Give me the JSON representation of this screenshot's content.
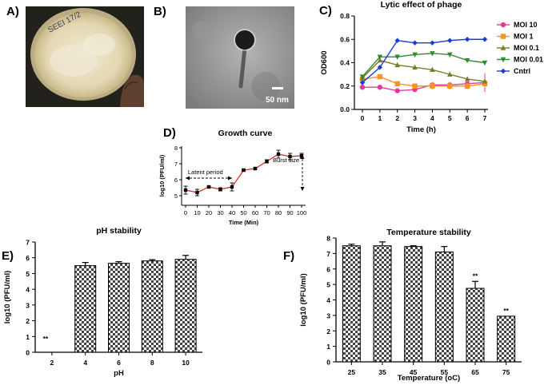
{
  "panels": {
    "a": {
      "label": "A)"
    },
    "b": {
      "label": "B)",
      "scale_bar": "50 nm"
    },
    "c": {
      "label": "C)"
    },
    "d": {
      "label": "D)"
    },
    "e": {
      "label": "E)"
    },
    "f": {
      "label": "F)"
    }
  },
  "plate": {
    "handwriting": "SEEI 17/2"
  },
  "colors": {
    "moi10": "#e6389c",
    "moi1": "#f7941d",
    "moi01": "#7a7a2a",
    "moi001": "#2e8b2e",
    "cntrl": "#1f3bd6",
    "growth_line": "#e0201b",
    "bar_fill": "#555555"
  },
  "chart_data": [
    {
      "id": "lytic",
      "type": "line",
      "title": "Lytic effect of phage",
      "xlabel": "Time (h)",
      "ylabel": "OD600",
      "x": [
        0,
        1,
        2,
        3,
        4,
        5,
        6,
        7
      ],
      "xticks": [
        "0",
        "1",
        "2",
        "3",
        "4",
        "5",
        "6",
        "7"
      ],
      "ylim": [
        0,
        0.8
      ],
      "yticks": [
        "0.0",
        "0.2",
        "0.4",
        "0.6",
        "0.8"
      ],
      "legend_position": "right",
      "series": [
        {
          "name": "MOI 10",
          "marker": "circle",
          "values": [
            0.19,
            0.19,
            0.16,
            0.17,
            0.21,
            0.21,
            0.22,
            0.23
          ]
        },
        {
          "name": "MOI 1",
          "marker": "square",
          "values": [
            0.26,
            0.28,
            0.22,
            0.2,
            0.2,
            0.2,
            0.2,
            0.22
          ]
        },
        {
          "name": "MOI 0.1",
          "marker": "triangle-up",
          "values": [
            0.27,
            0.42,
            0.38,
            0.36,
            0.34,
            0.3,
            0.26,
            0.24
          ]
        },
        {
          "name": "MOI 0.01",
          "marker": "triangle-down",
          "values": [
            0.28,
            0.45,
            0.45,
            0.47,
            0.48,
            0.47,
            0.42,
            0.4
          ]
        },
        {
          "name": "Cntrl",
          "marker": "diamond",
          "values": [
            0.23,
            0.36,
            0.59,
            0.57,
            0.57,
            0.59,
            0.6,
            0.6
          ]
        }
      ]
    },
    {
      "id": "growth",
      "type": "line",
      "title": "Growth curve",
      "xlabel": "Time (Min)",
      "ylabel": "log10 (PFU/ml)",
      "x": [
        0,
        10,
        20,
        30,
        40,
        50,
        60,
        70,
        80,
        90,
        100
      ],
      "xticks": [
        "0",
        "10",
        "20",
        "30",
        "40",
        "50",
        "60",
        "70",
        "80",
        "90",
        "100"
      ],
      "ylim": [
        4.4,
        8.1
      ],
      "yticks": [
        "5",
        "6",
        "7",
        "8"
      ],
      "values": [
        5.35,
        5.2,
        5.55,
        5.4,
        5.55,
        6.6,
        6.7,
        7.15,
        7.6,
        7.45,
        7.5
      ],
      "errors": [
        0.25,
        0.2,
        0.05,
        0.1,
        0.25,
        0.05,
        0.05,
        0.1,
        0.25,
        0.2,
        0.15
      ],
      "annotations": {
        "latent": "Latent period",
        "burst": "Burst size"
      }
    },
    {
      "id": "ph",
      "type": "bar",
      "title": "pH stability",
      "xlabel": "pH",
      "ylabel": "log10 (PFU/ml)",
      "categories": [
        "2",
        "4",
        "6",
        "8",
        "10"
      ],
      "values": [
        0,
        5.5,
        5.65,
        5.8,
        5.9
      ],
      "errors": [
        0,
        0.2,
        0.1,
        0.08,
        0.25
      ],
      "marks": [
        "**",
        "",
        "",
        "",
        ""
      ],
      "ylim": [
        0,
        7
      ],
      "yticks": [
        "0",
        "1",
        "2",
        "3",
        "4",
        "5",
        "6",
        "7"
      ]
    },
    {
      "id": "temp",
      "type": "bar",
      "title": "Temperature stability",
      "xlabel": "Temperature (oC)",
      "ylabel": "log10 (PFU/ml)",
      "categories": [
        "25",
        "35",
        "45",
        "55",
        "65",
        "75"
      ],
      "values": [
        7.5,
        7.5,
        7.45,
        7.1,
        4.75,
        2.95
      ],
      "errors": [
        0.1,
        0.25,
        0.05,
        0.35,
        0.45,
        0
      ],
      "marks": [
        "",
        "",
        "",
        "",
        "**",
        "**"
      ],
      "ylim": [
        0,
        8
      ],
      "yticks": [
        "0",
        "1",
        "2",
        "3",
        "4",
        "5",
        "6",
        "7",
        "8"
      ]
    }
  ]
}
